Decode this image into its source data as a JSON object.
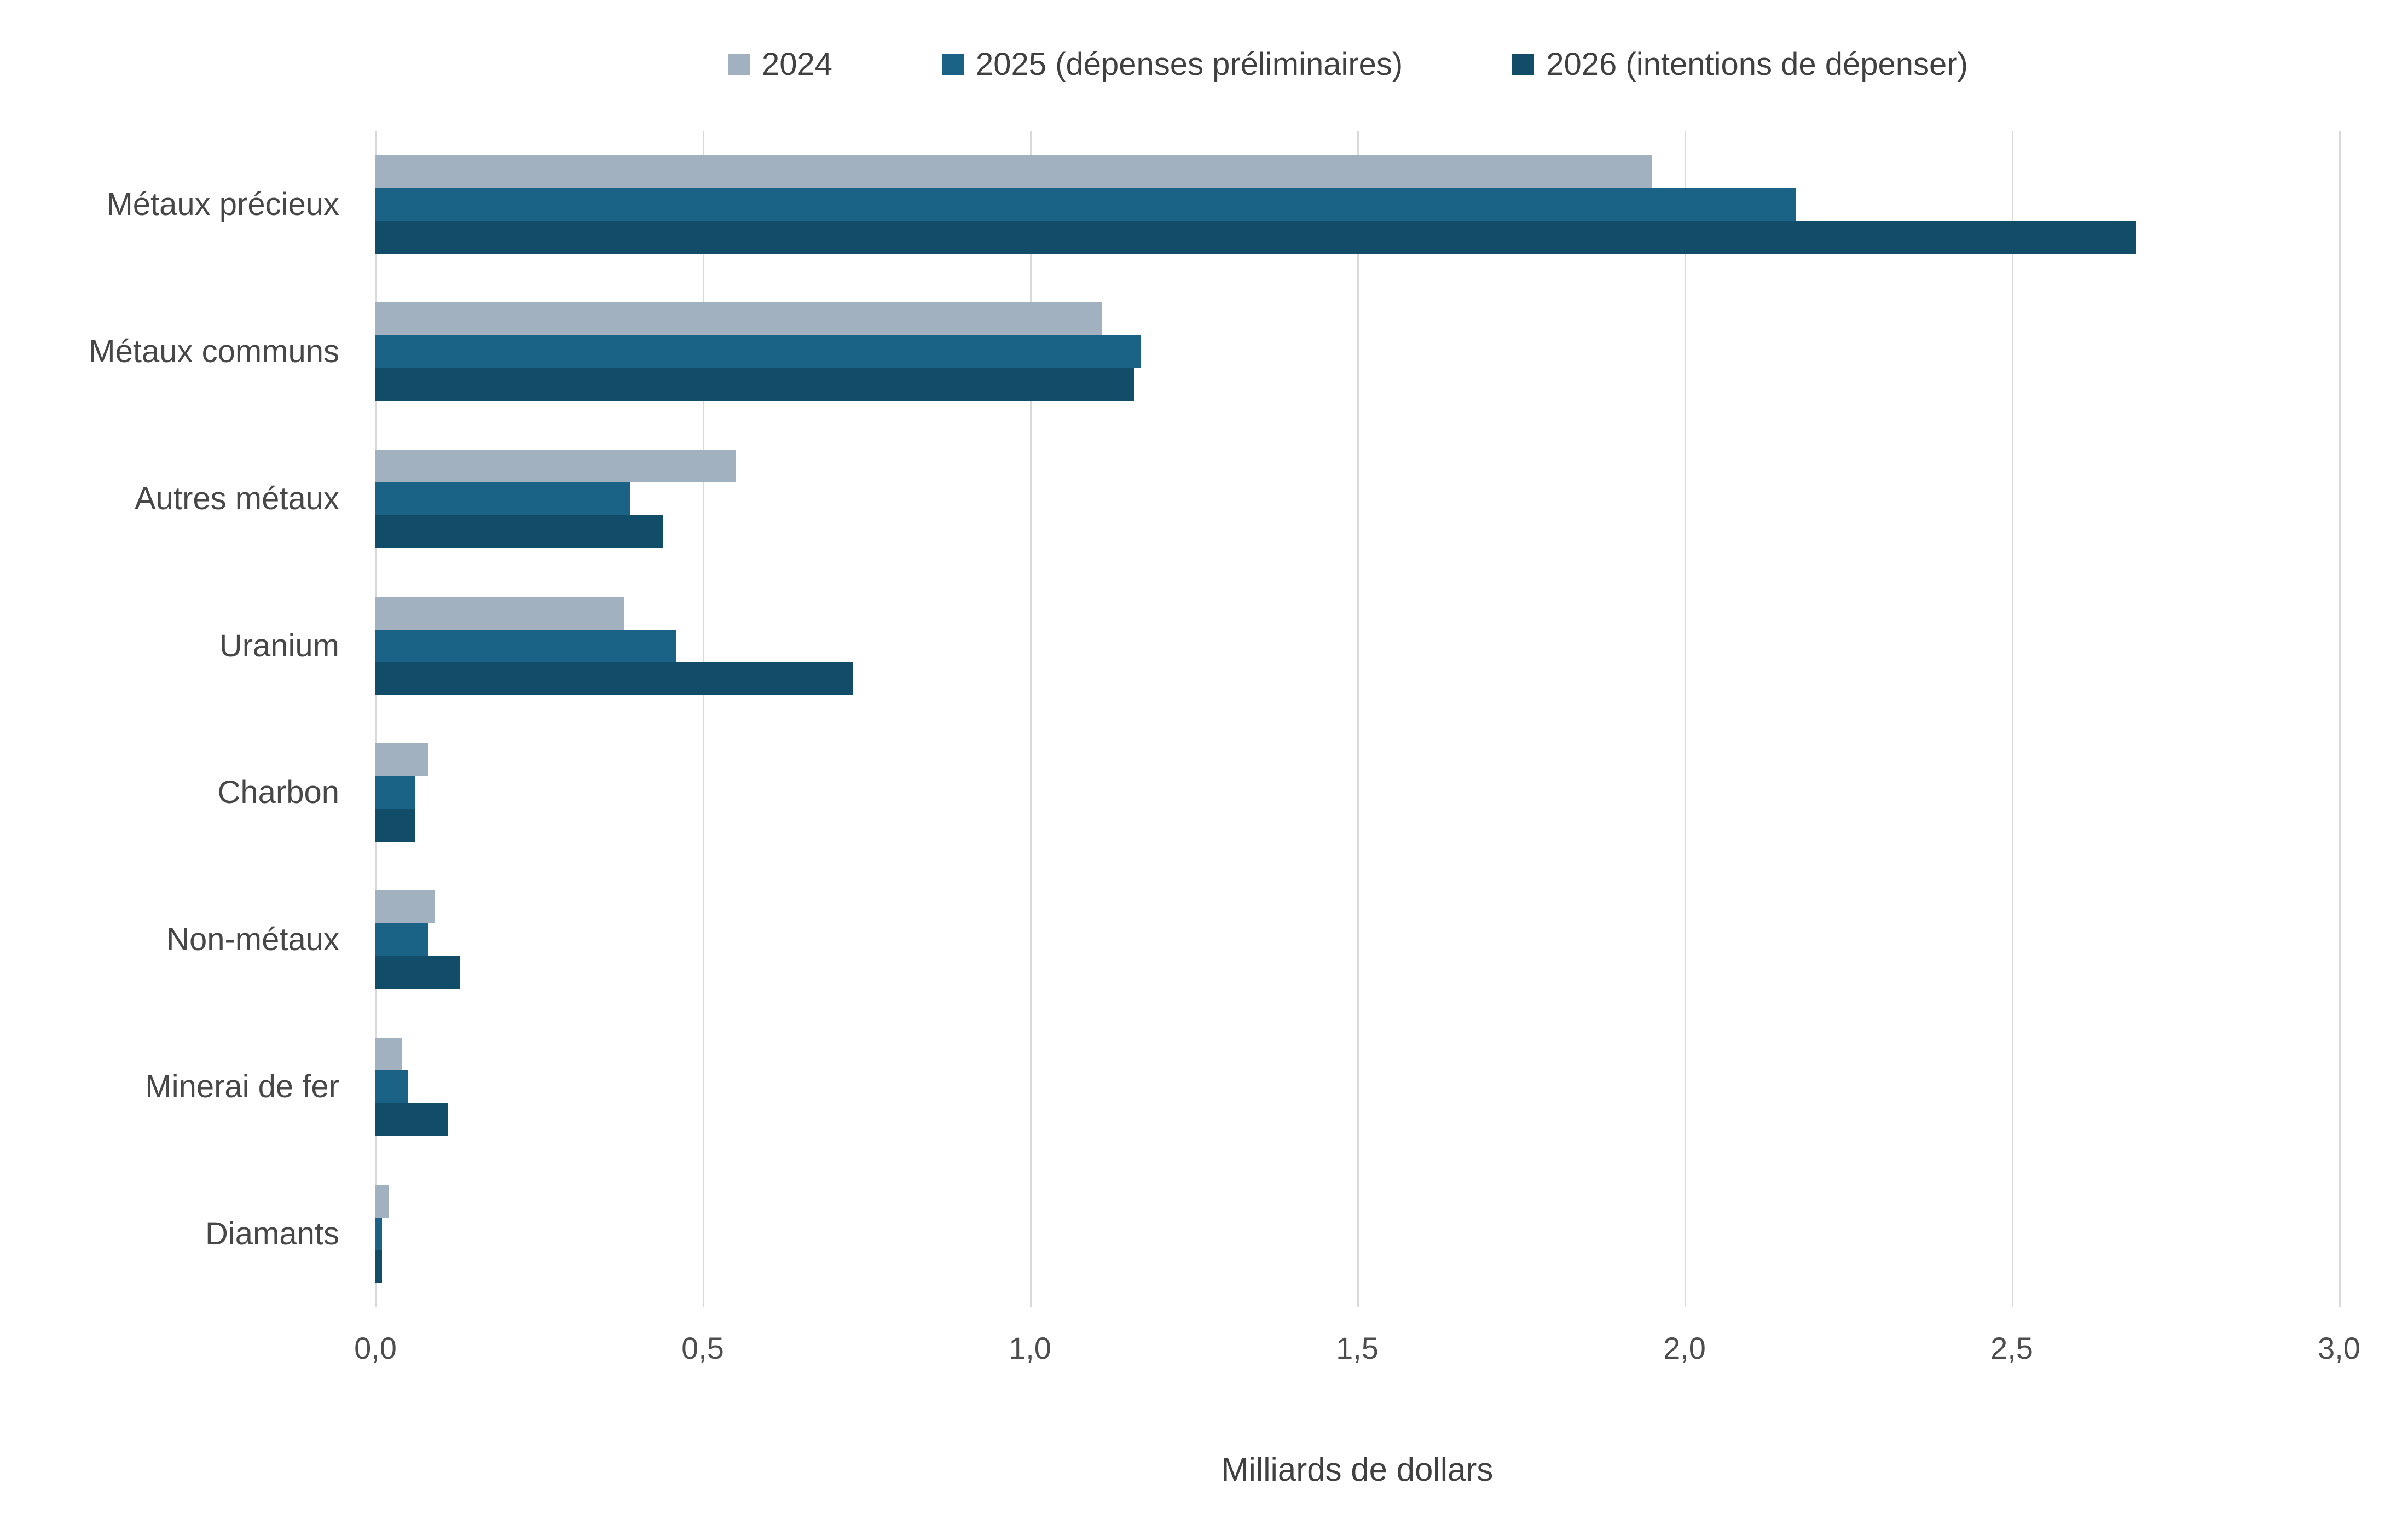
{
  "chart_data": {
    "type": "bar",
    "orientation": "horizontal",
    "title": "",
    "xlabel": "Milliards de dollars",
    "ylabel": "",
    "xlim": [
      0,
      3.0
    ],
    "xtick_step": 0.5,
    "xtick_labels": [
      "0,0",
      "0,5",
      "1,0",
      "1,5",
      "2,0",
      "2,5",
      "3,0"
    ],
    "grid": "vertical",
    "legend_position": "top",
    "gridline_color": "#D9D9D9",
    "axis_text_color": "#4D4D4D",
    "categories": [
      "Métaux précieux",
      "Métaux communs",
      "Autres métaux",
      "Uranium",
      "Charbon",
      "Non-métaux",
      "Minerai de fer",
      "Diamants"
    ],
    "series": [
      {
        "name": "2024",
        "color": "#A2B1BF",
        "values": [
          1.95,
          1.11,
          0.55,
          0.38,
          0.08,
          0.09,
          0.04,
          0.02
        ]
      },
      {
        "name": "2025 (dépenses préliminaires)",
        "color": "#1A6286",
        "values": [
          2.17,
          1.17,
          0.39,
          0.46,
          0.06,
          0.08,
          0.05,
          0.01
        ]
      },
      {
        "name": "2026 (intentions de dépenser)",
        "color": "#114D68",
        "values": [
          2.69,
          1.16,
          0.44,
          0.73,
          0.06,
          0.13,
          0.11,
          0.01
        ]
      }
    ]
  }
}
